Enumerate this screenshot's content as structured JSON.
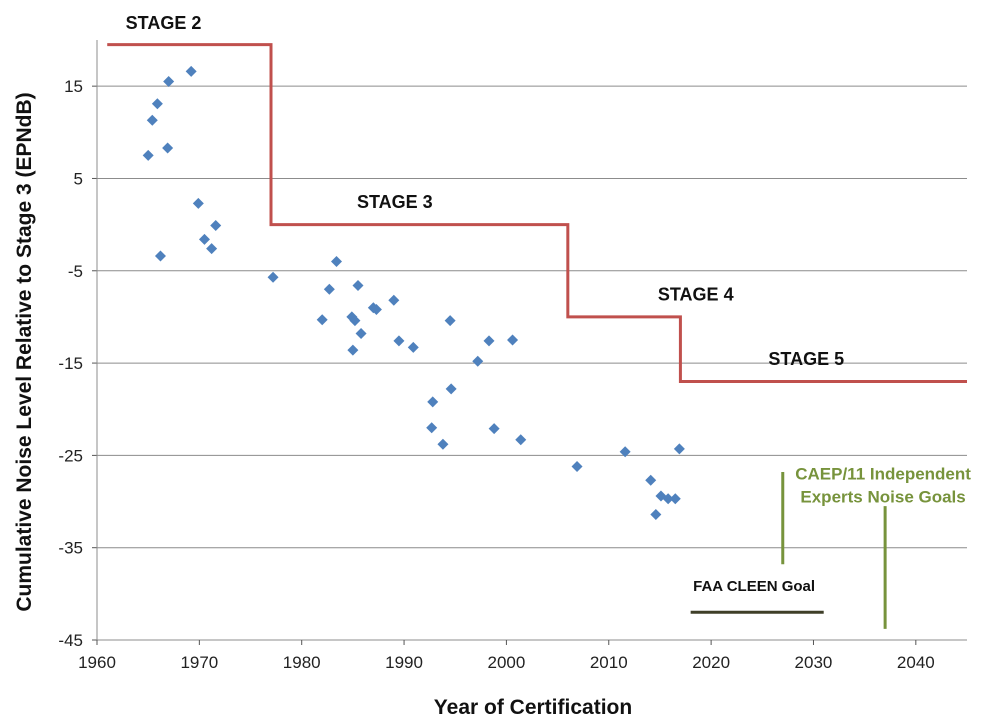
{
  "chart_data": {
    "type": "scatter",
    "xlabel": "Year of Certification",
    "ylabel": "Cumulative Noise Level Relative to Stage 3 (EPNdB)",
    "xlim": [
      1960,
      2045
    ],
    "ylim": [
      -45,
      20
    ],
    "xticks": [
      1960,
      1970,
      1980,
      1990,
      2000,
      2010,
      2020,
      2030,
      2040
    ],
    "yticks": [
      -45,
      -35,
      -25,
      -15,
      -5,
      5,
      15
    ],
    "grid": "horizontal",
    "points_color": "#4f81bd",
    "points": [
      [
        1965,
        7.5
      ],
      [
        1965.4,
        11.3
      ],
      [
        1965.9,
        13.1
      ],
      [
        1966.2,
        -3.4
      ],
      [
        1966.9,
        8.3
      ],
      [
        1967,
        15.5
      ],
      [
        1969.2,
        16.6
      ],
      [
        1969.9,
        2.3
      ],
      [
        1970.5,
        -1.6
      ],
      [
        1971.2,
        -2.6
      ],
      [
        1971.6,
        -0.1
      ],
      [
        1977.2,
        -5.7
      ],
      [
        1982,
        -10.3
      ],
      [
        1982.7,
        -7
      ],
      [
        1983.4,
        -4
      ],
      [
        1984.9,
        -10
      ],
      [
        1985,
        -13.6
      ],
      [
        1985.2,
        -10.4
      ],
      [
        1985.5,
        -6.6
      ],
      [
        1985.8,
        -11.8
      ],
      [
        1987,
        -9
      ],
      [
        1987.3,
        -9.2
      ],
      [
        1989,
        -8.2
      ],
      [
        1989.5,
        -12.6
      ],
      [
        1990.9,
        -13.3
      ],
      [
        1992.8,
        -19.2
      ],
      [
        1992.7,
        -22
      ],
      [
        1993.8,
        -23.8
      ],
      [
        1994.5,
        -10.4
      ],
      [
        1994.6,
        -17.8
      ],
      [
        1997.2,
        -14.8
      ],
      [
        1998.3,
        -12.6
      ],
      [
        1998.8,
        -22.1
      ],
      [
        2000.6,
        -12.5
      ],
      [
        2001.4,
        -23.3
      ],
      [
        2006.9,
        -26.2
      ],
      [
        2011.6,
        -24.6
      ],
      [
        2014.1,
        -27.7
      ],
      [
        2014.6,
        -31.4
      ],
      [
        2015.1,
        -29.4
      ],
      [
        2015.8,
        -29.7
      ],
      [
        2016.5,
        -29.7
      ],
      [
        2016.9,
        -24.3
      ]
    ],
    "stages": {
      "color": "#c0504d",
      "line": [
        [
          1961,
          19.5
        ],
        [
          1977,
          19.5
        ],
        [
          1977,
          0
        ],
        [
          2006,
          0
        ],
        [
          2006,
          -10
        ],
        [
          2017,
          -10
        ],
        [
          2017,
          -17
        ],
        [
          2045,
          -17
        ]
      ],
      "labels": [
        {
          "text": "STAGE 2",
          "x": 1962.8,
          "y": 21.2
        },
        {
          "text": "STAGE 3",
          "x": 1985.4,
          "y": 1.8
        },
        {
          "text": "STAGE 4",
          "x": 2014.8,
          "y": -8.2
        },
        {
          "text": "STAGE 5",
          "x": 2025.6,
          "y": -15.2
        }
      ]
    },
    "annotations": {
      "caep_color": "#77933c",
      "caep_label_lines": [
        "CAEP/11 Independent",
        "Experts Noise Goals"
      ],
      "caep_goals": [
        {
          "x": 2027,
          "y_range": [
            -26.8,
            -36.8
          ]
        },
        {
          "x": 2037,
          "y_range": [
            -30.5,
            -43.8
          ]
        }
      ],
      "cleen_color": "#3f3f28",
      "cleen_label": "FAA CLEEN Goal",
      "cleen_line": {
        "x_range": [
          2018,
          2031
        ],
        "y": -42
      }
    }
  }
}
